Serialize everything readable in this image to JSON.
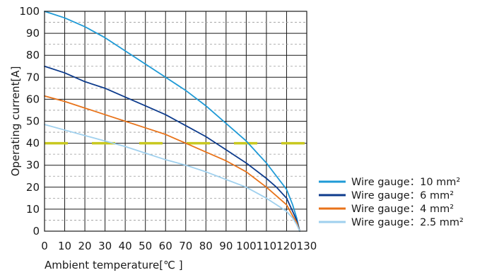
{
  "chart_data": {
    "type": "line",
    "title": "",
    "xlabel": "Ambient temperature[℃ ]",
    "ylabel": "Operating current[A]",
    "xlim": [
      0,
      130
    ],
    "ylim": [
      0,
      100
    ],
    "x_ticks": [
      "0",
      "10",
      "20",
      "30",
      "40",
      "50",
      "60",
      "70",
      "80",
      "90",
      "100",
      "110",
      "120",
      "130"
    ],
    "y_ticks": [
      "0",
      "10",
      "20",
      "30",
      "40",
      "50",
      "60",
      "70",
      "80",
      "90",
      "100"
    ],
    "grid": true,
    "legend_position": "bottom-right outside",
    "series": [
      {
        "name": "Wire gauge：10 mm²",
        "color": "#1f9ad6",
        "x": [
          0,
          10,
          20,
          30,
          40,
          50,
          60,
          70,
          80,
          90,
          100,
          110,
          115,
          120,
          123,
          125,
          126.5
        ],
        "y": [
          100,
          97,
          93,
          88,
          82,
          76,
          70,
          64,
          57,
          49,
          41,
          31,
          25,
          19,
          12,
          6,
          0
        ]
      },
      {
        "name": "Wire gauge：6 mm²",
        "color": "#0d3b8c",
        "x": [
          0,
          10,
          20,
          30,
          40,
          50,
          60,
          70,
          80,
          90,
          100,
          110,
          115,
          120,
          123,
          125,
          126.5
        ],
        "y": [
          75,
          72,
          68,
          65,
          61,
          57,
          53,
          48,
          43,
          37,
          31,
          24,
          20,
          15,
          9,
          5,
          0
        ]
      },
      {
        "name": "Wire gauge：4 mm²",
        "color": "#e8731a",
        "x": [
          0,
          10,
          20,
          30,
          40,
          50,
          60,
          70,
          80,
          90,
          100,
          110,
          115,
          120,
          123,
          125,
          126.5
        ],
        "y": [
          61.5,
          59,
          56,
          53,
          50,
          47,
          44,
          40,
          36,
          32,
          27,
          20,
          16,
          12,
          7,
          4,
          0
        ]
      },
      {
        "name": "Wire gauge：2.5 mm²",
        "color": "#9fd0ee",
        "x": [
          0,
          10,
          20,
          30,
          40,
          50,
          60,
          70,
          80,
          90,
          100,
          110,
          115,
          120,
          123,
          125,
          126.5
        ],
        "y": [
          48.5,
          46,
          43.5,
          41,
          38.5,
          35.5,
          32.5,
          30,
          27,
          23.5,
          20,
          15,
          12,
          9,
          6,
          3,
          0
        ]
      }
    ],
    "reference_line": {
      "y": 40,
      "color": "#c8c820",
      "style": "dashed"
    }
  }
}
